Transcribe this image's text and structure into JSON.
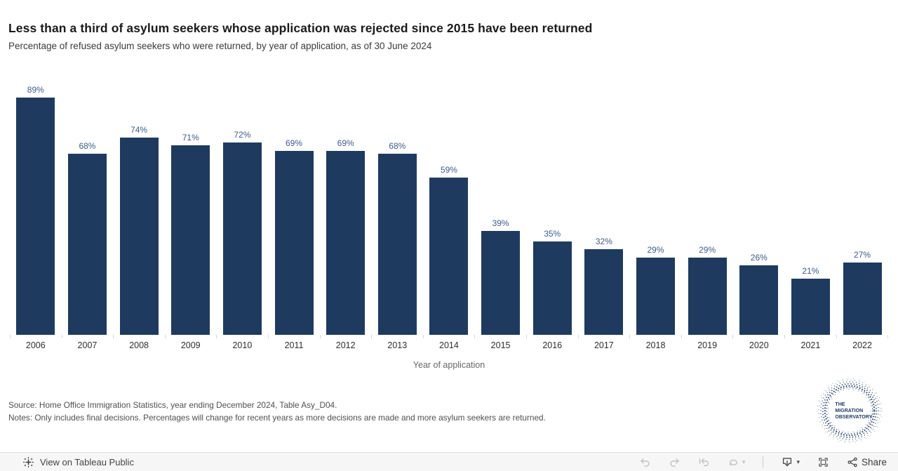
{
  "header": {
    "title": "Less than a third of asylum seekers whose application was rejected since 2015 have been returned",
    "subtitle": "Percentage of refused asylum seekers who were returned, by year of application, as of 30 June 2024"
  },
  "chart_data": {
    "type": "bar",
    "title": "Less than a third of asylum seekers whose application was rejected since 2015 have been returned",
    "subtitle": "Percentage of refused asylum seekers who were returned, by year of application, as of 30 June 2024",
    "categories": [
      "2006",
      "2007",
      "2008",
      "2009",
      "2010",
      "2011",
      "2012",
      "2013",
      "2014",
      "2015",
      "2016",
      "2017",
      "2018",
      "2019",
      "2020",
      "2021",
      "2022"
    ],
    "values": [
      89,
      68,
      74,
      71,
      72,
      69,
      69,
      68,
      59,
      39,
      35,
      32,
      29,
      29,
      26,
      21,
      27
    ],
    "labels": [
      "89%",
      "68%",
      "74%",
      "71%",
      "72%",
      "69%",
      "69%",
      "68%",
      "59%",
      "39%",
      "35%",
      "32%",
      "29%",
      "29%",
      "26%",
      "21%",
      "27%"
    ],
    "xlabel": "Year of application",
    "ylabel": "",
    "ylim": [
      0,
      100
    ],
    "grid": false,
    "legend": "none",
    "bar_color": "#1f3a5f",
    "value_label_color": "#3e5c87"
  },
  "notes": {
    "source": "Source: Home Office Immigration Statistics, year ending December 2024, Table Asy_D04.",
    "notes": "Notes: Only includes final decisions. Percentages will change for recent years as more decisions are made and more asylum seekers are returned."
  },
  "logo": {
    "line1": "THE",
    "line2": "MIGRATION",
    "line3": "OBSERVATORY",
    "color": "#1f3a5f"
  },
  "footer": {
    "view_on_tableau": "View on Tableau Public",
    "share": "Share"
  }
}
